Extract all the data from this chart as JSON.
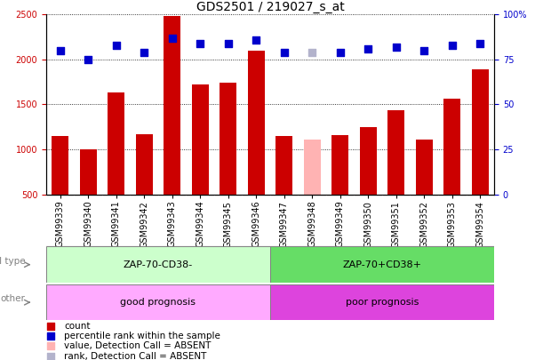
{
  "title": "GDS2501 / 219027_s_at",
  "samples": [
    "GSM99339",
    "GSM99340",
    "GSM99341",
    "GSM99342",
    "GSM99343",
    "GSM99344",
    "GSM99345",
    "GSM99346",
    "GSM99347",
    "GSM99348",
    "GSM99349",
    "GSM99350",
    "GSM99351",
    "GSM99352",
    "GSM99353",
    "GSM99354"
  ],
  "counts": [
    1150,
    1000,
    1630,
    1170,
    2480,
    1720,
    1740,
    2100,
    1150,
    1110,
    1160,
    1250,
    1440,
    1110,
    1560,
    1890
  ],
  "absent_flags": [
    false,
    false,
    false,
    false,
    false,
    false,
    false,
    false,
    false,
    true,
    false,
    false,
    false,
    false,
    false,
    false
  ],
  "percentile_ranks": [
    80,
    75,
    83,
    79,
    87,
    84,
    84,
    86,
    79,
    79,
    79,
    81,
    82,
    80,
    83,
    84
  ],
  "absent_rank_flags": [
    false,
    false,
    false,
    false,
    false,
    false,
    false,
    false,
    false,
    true,
    false,
    false,
    false,
    false,
    false,
    false
  ],
  "bar_color_normal": "#cc0000",
  "bar_color_absent": "#ffb3b3",
  "dot_color_normal": "#0000cc",
  "dot_color_absent": "#b3b3cc",
  "ylim_left": [
    500,
    2500
  ],
  "ylim_right": [
    0,
    100
  ],
  "yticks_left": [
    500,
    1000,
    1500,
    2000,
    2500
  ],
  "yticks_right": [
    0,
    25,
    50,
    75,
    100
  ],
  "group1_label": "ZAP-70-CD38-",
  "group2_label": "ZAP-70+CD38+",
  "group1_count": 8,
  "group2_count": 8,
  "cell_type_label": "cell type",
  "other_label": "other",
  "group1_bg": "#ccffcc",
  "group2_bg": "#66dd66",
  "prognosis1_label": "good prognosis",
  "prognosis2_label": "poor prognosis",
  "prognosis1_bg": "#ffaaff",
  "prognosis2_bg": "#dd44dd",
  "legend_items": [
    {
      "label": "count",
      "color": "#cc0000"
    },
    {
      "label": "percentile rank within the sample",
      "color": "#0000cc"
    },
    {
      "label": "value, Detection Call = ABSENT",
      "color": "#ffb3b3"
    },
    {
      "label": "rank, Detection Call = ABSENT",
      "color": "#b3b3cc"
    }
  ],
  "bar_width": 0.6,
  "background_color": "#ffffff",
  "title_fontsize": 10,
  "label_fontsize": 7.5,
  "tick_fontsize": 7,
  "annotation_fontsize": 8
}
